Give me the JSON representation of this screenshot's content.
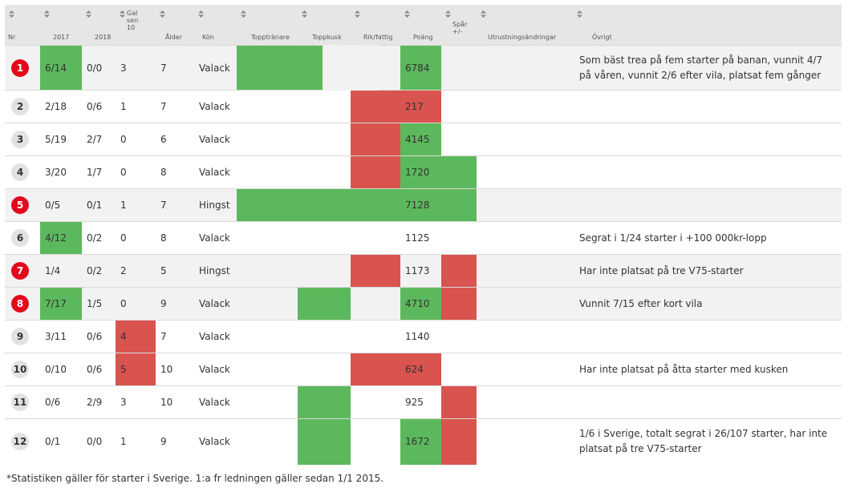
{
  "columns": [
    {
      "label": "Nr"
    },
    {
      "label": "2017"
    },
    {
      "label": "2018"
    },
    {
      "label": "Gal sen 10"
    },
    {
      "label": "Ålder"
    },
    {
      "label": "Kön"
    },
    {
      "label": "Topptränare"
    },
    {
      "label": "Toppkusk"
    },
    {
      "label": "Rik/fattig"
    },
    {
      "label": "Poäng"
    },
    {
      "label": "Spår +/-"
    },
    {
      "label": "Utrustningsändringar"
    },
    {
      "label": "Övrigt"
    }
  ],
  "colors": {
    "green": "#5cb85c",
    "red": "#d9534f",
    "badge_red": "#e3091b",
    "header": "#e6e6e6"
  },
  "rows": [
    {
      "nr": "1",
      "y2017": "6/14",
      "y2018": "0/0",
      "gal": "3",
      "alder": "7",
      "kon": "Valack",
      "poang": "6784",
      "utr": "",
      "ovrigt": "Som bäst trea på fem starter på banan, vunnit 4/7 på våren, vunnit 2/6 efter vila, platsat fem gånger"
    },
    {
      "nr": "2",
      "y2017": "2/18",
      "y2018": "0/6",
      "gal": "1",
      "alder": "7",
      "kon": "Valack",
      "poang": "217",
      "utr": "",
      "ovrigt": ""
    },
    {
      "nr": "3",
      "y2017": "5/19",
      "y2018": "2/7",
      "gal": "0",
      "alder": "6",
      "kon": "Valack",
      "poang": "4145",
      "utr": "",
      "ovrigt": ""
    },
    {
      "nr": "4",
      "y2017": "3/20",
      "y2018": "1/7",
      "gal": "0",
      "alder": "8",
      "kon": "Valack",
      "poang": "1720",
      "utr": "",
      "ovrigt": ""
    },
    {
      "nr": "5",
      "y2017": "0/5",
      "y2018": "0/1",
      "gal": "1",
      "alder": "7",
      "kon": "Hingst",
      "poang": "7128",
      "utr": "",
      "ovrigt": ""
    },
    {
      "nr": "6",
      "y2017": "4/12",
      "y2018": "0/2",
      "gal": "0",
      "alder": "8",
      "kon": "Valack",
      "poang": "1125",
      "utr": "",
      "ovrigt": "Segrat i 1/24 starter i +100 000kr-lopp"
    },
    {
      "nr": "7",
      "y2017": "1/4",
      "y2018": "0/2",
      "gal": "2",
      "alder": "5",
      "kon": "Hingst",
      "poang": "1173",
      "utr": "",
      "ovrigt": "Har inte platsat på tre V75-starter"
    },
    {
      "nr": "8",
      "y2017": "7/17",
      "y2018": "1/5",
      "gal": "0",
      "alder": "9",
      "kon": "Valack",
      "poang": "4710",
      "utr": "",
      "ovrigt": "Vunnit 7/15 efter kort vila"
    },
    {
      "nr": "9",
      "y2017": "3/11",
      "y2018": "0/6",
      "gal": "4",
      "alder": "7",
      "kon": "Valack",
      "poang": "1140",
      "utr": "",
      "ovrigt": ""
    },
    {
      "nr": "10",
      "y2017": "0/10",
      "y2018": "0/6",
      "gal": "5",
      "alder": "10",
      "kon": "Valack",
      "poang": "624",
      "utr": "",
      "ovrigt": "Har inte platsat på åtta starter med kusken"
    },
    {
      "nr": "11",
      "y2017": "0/6",
      "y2018": "2/9",
      "gal": "3",
      "alder": "10",
      "kon": "Valack",
      "poang": "925",
      "utr": "",
      "ovrigt": ""
    },
    {
      "nr": "12",
      "y2017": "0/1",
      "y2018": "0/0",
      "gal": "1",
      "alder": "9",
      "kon": "Valack",
      "poang": "1672",
      "utr": "",
      "ovrigt": "1/6 i Sverige, totalt segrat i 26/107 starter, har inte platsat på tre V75-starter"
    }
  ],
  "footnote": "*Statistiken gäller för starter i Sverige. 1:a fr ledningen gäller sedan 1/1 2015."
}
